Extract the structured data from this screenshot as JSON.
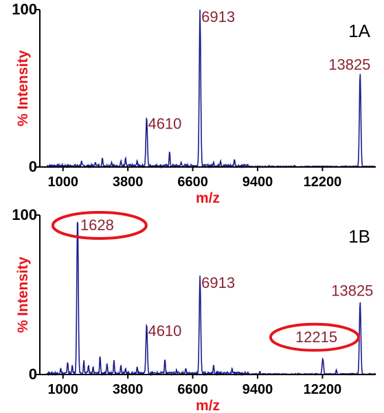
{
  "colors": {
    "trace": "#1a1a8c",
    "axis_label": "#e8141b",
    "peak_label": "#8b2232",
    "highlight": "#e8141b"
  },
  "chart_data": [
    {
      "type": "line",
      "panel_tag": "1A",
      "xlabel": "m/z",
      "ylabel": "% Intensity",
      "xlim": [
        0,
        14500
      ],
      "ylim": [
        0,
        100
      ],
      "xticks": [
        1000,
        3800,
        6600,
        9400,
        12200
      ],
      "xtick_labels": [
        "1000",
        "3800",
        "6600",
        "9400",
        "12200"
      ],
      "yticks": [
        0,
        100
      ],
      "ytick_labels": [
        "0",
        "100"
      ],
      "peaks": [
        {
          "x": 4610,
          "y": 32,
          "label": "4610"
        },
        {
          "x": 6913,
          "y": 100,
          "label": "6913"
        },
        {
          "x": 13825,
          "y": 60,
          "label": "13825"
        }
      ],
      "minor_peaks": [
        [
          1800,
          4
        ],
        [
          2400,
          3
        ],
        [
          2700,
          6
        ],
        [
          3100,
          3
        ],
        [
          3500,
          4
        ],
        [
          3700,
          6
        ],
        [
          4200,
          4
        ],
        [
          5600,
          10
        ],
        [
          6100,
          3
        ],
        [
          7500,
          3
        ],
        [
          7800,
          4
        ],
        [
          8400,
          5
        ],
        [
          9900,
          1
        ],
        [
          11000,
          1
        ]
      ],
      "circled": []
    },
    {
      "type": "line",
      "panel_tag": "1B",
      "xlabel": "m/z",
      "ylabel": "% Intensity",
      "xlim": [
        0,
        14500
      ],
      "ylim": [
        0,
        100
      ],
      "xticks": [
        1000,
        3800,
        6600,
        9400,
        12200
      ],
      "xtick_labels": [
        "1000",
        "3800",
        "6600",
        "9400",
        "12200"
      ],
      "yticks": [
        0,
        100
      ],
      "ytick_labels": [
        "0",
        "100"
      ],
      "peaks": [
        {
          "x": 1628,
          "y": 100,
          "label": "1628"
        },
        {
          "x": 4610,
          "y": 32,
          "label": "4610"
        },
        {
          "x": 6913,
          "y": 62,
          "label": "6913"
        },
        {
          "x": 12215,
          "y": 10,
          "label": "12215"
        },
        {
          "x": 13825,
          "y": 46,
          "label": "13825"
        }
      ],
      "minor_peaks": [
        [
          900,
          4
        ],
        [
          1200,
          8
        ],
        [
          1400,
          6
        ],
        [
          1900,
          9
        ],
        [
          2100,
          6
        ],
        [
          2300,
          5
        ],
        [
          2600,
          12
        ],
        [
          2900,
          7
        ],
        [
          3200,
          9
        ],
        [
          3500,
          6
        ],
        [
          3700,
          4
        ],
        [
          4200,
          5
        ],
        [
          5400,
          10
        ],
        [
          5900,
          3
        ],
        [
          6300,
          4
        ],
        [
          7500,
          6
        ],
        [
          8300,
          4
        ],
        [
          9500,
          2
        ],
        [
          12800,
          3
        ]
      ],
      "circled": [
        "1628",
        "12215"
      ]
    }
  ]
}
